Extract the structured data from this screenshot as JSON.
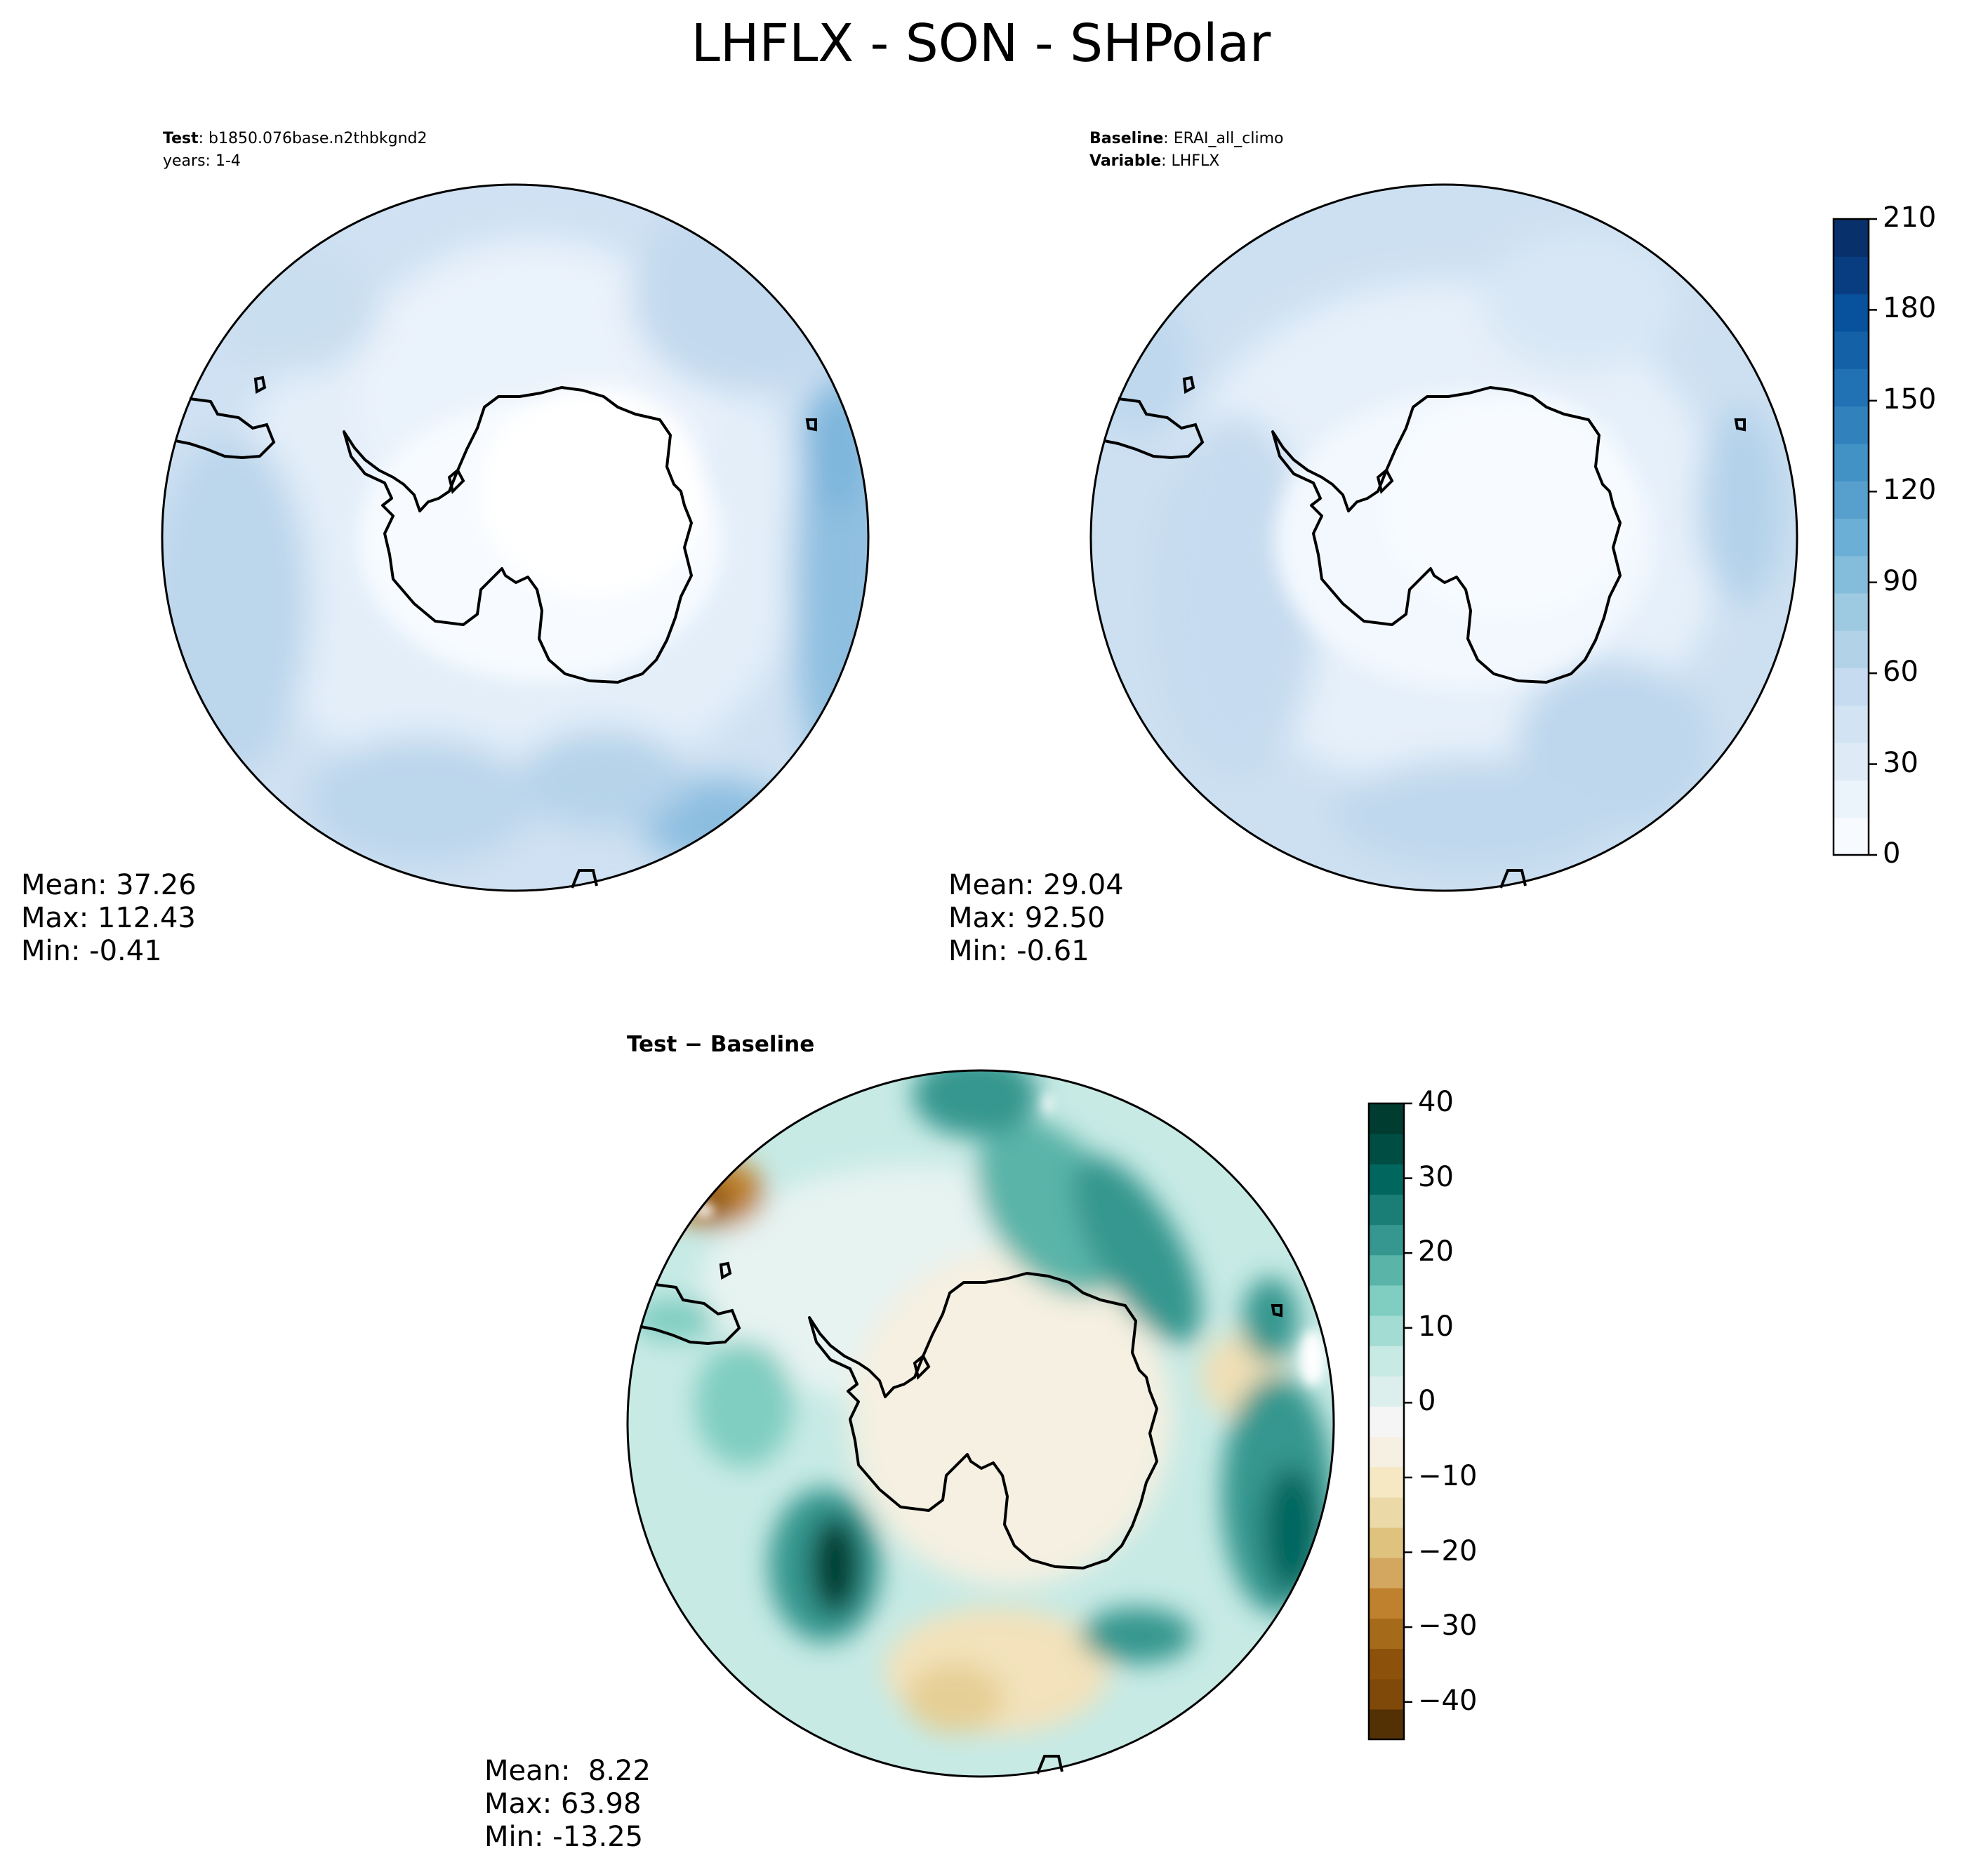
{
  "figure": {
    "title": "LHFLX - SON - SHPolar"
  },
  "panels": {
    "test": {
      "label_key": "Test",
      "label_value": "b1850.076base.n2thbkgnd2",
      "line2": "years: 1-4",
      "stats": {
        "mean": "Mean: 37.26",
        "max": "Max: 112.43",
        "min": "Min: -0.41"
      }
    },
    "baseline": {
      "label_key": "Baseline",
      "label_value": "ERAI_all_climo",
      "var_key": "Variable",
      "var_value": "LHFLX",
      "stats": {
        "mean": "Mean: 29.04",
        "max": "Max: 92.50",
        "min": "Min: -0.61"
      }
    },
    "diff": {
      "title": "Test − Baseline",
      "stats": {
        "mean": "Mean:  8.22",
        "max": "Max: 63.98",
        "min": "Min: -13.25"
      }
    }
  },
  "colorbars": {
    "main": {
      "ticks": [
        "0",
        "30",
        "60",
        "90",
        "120",
        "150",
        "180",
        "210"
      ],
      "colors": [
        "#f7fbff",
        "#ebf3fb",
        "#deebf7",
        "#d2e3f3",
        "#c6dbef",
        "#b2d2e8",
        "#9ecae1",
        "#84bcdb",
        "#6baed6",
        "#57a0ce",
        "#4292c6",
        "#3181bd",
        "#2171b5",
        "#1461a8",
        "#08519c",
        "#083e81",
        "#08306b"
      ]
    },
    "diff": {
      "ticks": [
        "40",
        "30",
        "20",
        "10",
        "0",
        "−10",
        "−20",
        "−30",
        "−40"
      ],
      "colors": [
        "#543005",
        "#7f4909",
        "#8c510a",
        "#a66a1b",
        "#bf812d",
        "#d3a75f",
        "#dfc27d",
        "#ecd9a8",
        "#f6e8c3",
        "#f5f0e1",
        "#f5f5f5",
        "#dcefec",
        "#c7eae5",
        "#a3dcd3",
        "#80cdc1",
        "#5ab4a8",
        "#35978f",
        "#1a7e76",
        "#01665e",
        "#004d43",
        "#003c30"
      ]
    }
  },
  "chart_data": [
    {
      "type": "heatmap",
      "projection": "south-polar-stereographic",
      "title": "Test: b1850.076base.n2thbkgnd2 years: 1-4",
      "variable": "LHFLX",
      "colorbar_range": [
        0,
        210
      ],
      "colorbar_ticks": [
        0,
        30,
        60,
        90,
        120,
        150,
        180,
        210
      ],
      "stats": {
        "mean": 37.26,
        "max": 112.43,
        "min": -0.41
      }
    },
    {
      "type": "heatmap",
      "projection": "south-polar-stereographic",
      "title": "Baseline: ERAI_all_climo Variable: LHFLX",
      "variable": "LHFLX",
      "colorbar_range": [
        0,
        210
      ],
      "colorbar_ticks": [
        0,
        30,
        60,
        90,
        120,
        150,
        180,
        210
      ],
      "stats": {
        "mean": 29.04,
        "max": 92.5,
        "min": -0.61
      }
    },
    {
      "type": "heatmap",
      "projection": "south-polar-stereographic",
      "title": "Test − Baseline",
      "variable": "LHFLX",
      "colorbar_range": [
        -45,
        40
      ],
      "colorbar_ticks": [
        40,
        30,
        20,
        10,
        0,
        -10,
        -20,
        -30,
        -40
      ],
      "stats": {
        "mean": 8.22,
        "max": 63.98,
        "min": -13.25
      }
    }
  ]
}
